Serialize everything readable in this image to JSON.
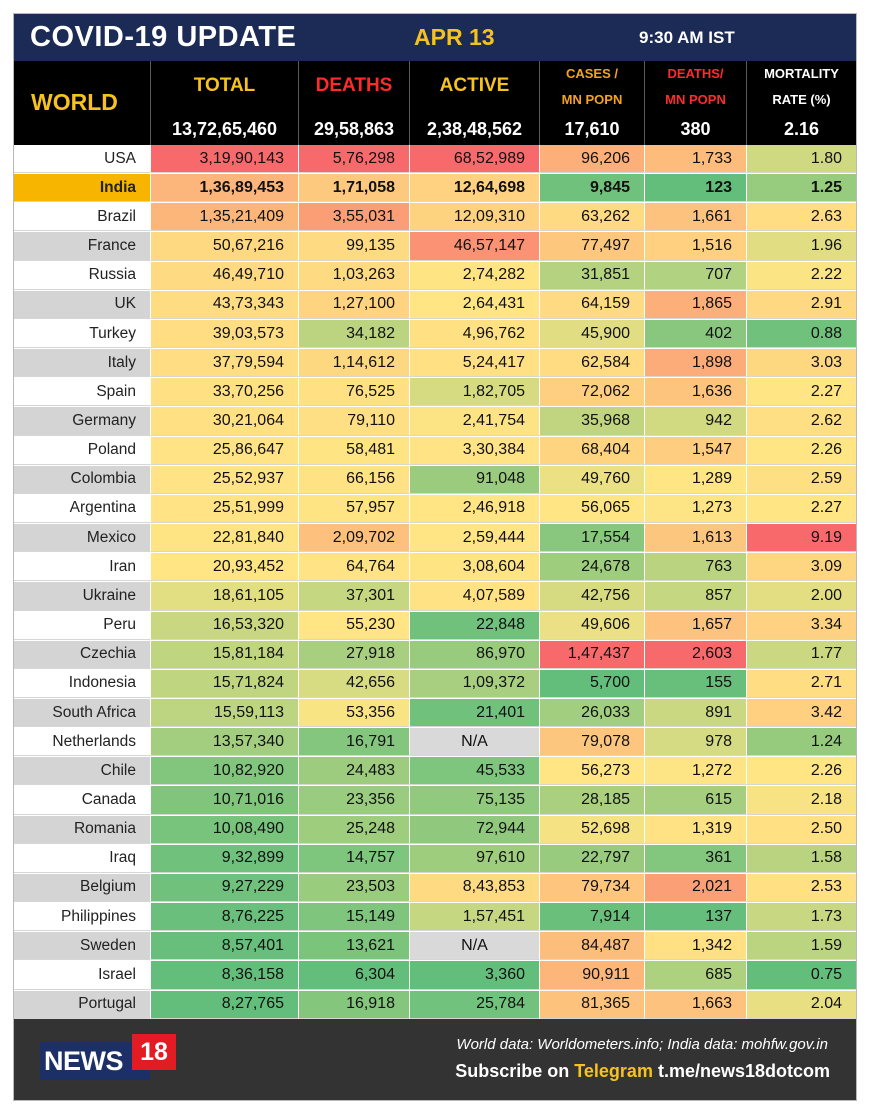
{
  "header": {
    "title": "COVID-19 UPDATE",
    "date": "APR 13",
    "time": "9:30 AM IST"
  },
  "columns": {
    "region": "WORLD",
    "total": "TOTAL",
    "deaths": "DEATHS",
    "active": "ACTIVE",
    "cases_per_mn_1": "CASES /",
    "cases_per_mn_2": "MN POPN",
    "deaths_per_mn_1": "DEATHS/",
    "deaths_per_mn_2": "MN POPN",
    "mortality_1": "MORTALITY",
    "mortality_2": "RATE (%)"
  },
  "world_totals": {
    "total": "13,72,65,460",
    "deaths": "29,58,863",
    "active": "2,38,48,562",
    "cases_per_mn": "17,610",
    "deaths_per_mn": "380",
    "mortality": "2.16"
  },
  "colors": {
    "header_navy": "#1b2b55",
    "accent_yellow": "#f7c21e",
    "deaths_red": "#ff2b2b",
    "cases_orange": "#f7a21e",
    "india_highlight": "#f7b500"
  },
  "rows": [
    {
      "country": "USA",
      "total": "3,19,90,143",
      "deaths": "5,76,298",
      "active": "68,52,989",
      "cases_per_mn": "96,206",
      "deaths_per_mn": "1,733",
      "mortality": "1.80"
    },
    {
      "country": "India",
      "total": "1,36,89,453",
      "deaths": "1,71,058",
      "active": "12,64,698",
      "cases_per_mn": "9,845",
      "deaths_per_mn": "123",
      "mortality": "1.25"
    },
    {
      "country": "Brazil",
      "total": "1,35,21,409",
      "deaths": "3,55,031",
      "active": "12,09,310",
      "cases_per_mn": "63,262",
      "deaths_per_mn": "1,661",
      "mortality": "2.63"
    },
    {
      "country": "France",
      "total": "50,67,216",
      "deaths": "99,135",
      "active": "46,57,147",
      "cases_per_mn": "77,497",
      "deaths_per_mn": "1,516",
      "mortality": "1.96"
    },
    {
      "country": "Russia",
      "total": "46,49,710",
      "deaths": "1,03,263",
      "active": "2,74,282",
      "cases_per_mn": "31,851",
      "deaths_per_mn": "707",
      "mortality": "2.22"
    },
    {
      "country": "UK",
      "total": "43,73,343",
      "deaths": "1,27,100",
      "active": "2,64,431",
      "cases_per_mn": "64,159",
      "deaths_per_mn": "1,865",
      "mortality": "2.91"
    },
    {
      "country": "Turkey",
      "total": "39,03,573",
      "deaths": "34,182",
      "active": "4,96,762",
      "cases_per_mn": "45,900",
      "deaths_per_mn": "402",
      "mortality": "0.88"
    },
    {
      "country": "Italy",
      "total": "37,79,594",
      "deaths": "1,14,612",
      "active": "5,24,417",
      "cases_per_mn": "62,584",
      "deaths_per_mn": "1,898",
      "mortality": "3.03"
    },
    {
      "country": "Spain",
      "total": "33,70,256",
      "deaths": "76,525",
      "active": "1,82,705",
      "cases_per_mn": "72,062",
      "deaths_per_mn": "1,636",
      "mortality": "2.27"
    },
    {
      "country": "Germany",
      "total": "30,21,064",
      "deaths": "79,110",
      "active": "2,41,754",
      "cases_per_mn": "35,968",
      "deaths_per_mn": "942",
      "mortality": "2.62"
    },
    {
      "country": "Poland",
      "total": "25,86,647",
      "deaths": "58,481",
      "active": "3,30,384",
      "cases_per_mn": "68,404",
      "deaths_per_mn": "1,547",
      "mortality": "2.26"
    },
    {
      "country": "Colombia",
      "total": "25,52,937",
      "deaths": "66,156",
      "active": "91,048",
      "cases_per_mn": "49,760",
      "deaths_per_mn": "1,289",
      "mortality": "2.59"
    },
    {
      "country": "Argentina",
      "total": "25,51,999",
      "deaths": "57,957",
      "active": "2,46,918",
      "cases_per_mn": "56,065",
      "deaths_per_mn": "1,273",
      "mortality": "2.27"
    },
    {
      "country": "Mexico",
      "total": "22,81,840",
      "deaths": "2,09,702",
      "active": "2,59,444",
      "cases_per_mn": "17,554",
      "deaths_per_mn": "1,613",
      "mortality": "9.19"
    },
    {
      "country": "Iran",
      "total": "20,93,452",
      "deaths": "64,764",
      "active": "3,08,604",
      "cases_per_mn": "24,678",
      "deaths_per_mn": "763",
      "mortality": "3.09"
    },
    {
      "country": "Ukraine",
      "total": "18,61,105",
      "deaths": "37,301",
      "active": "4,07,589",
      "cases_per_mn": "42,756",
      "deaths_per_mn": "857",
      "mortality": "2.00"
    },
    {
      "country": "Peru",
      "total": "16,53,320",
      "deaths": "55,230",
      "active": "22,848",
      "cases_per_mn": "49,606",
      "deaths_per_mn": "1,657",
      "mortality": "3.34"
    },
    {
      "country": "Czechia",
      "total": "15,81,184",
      "deaths": "27,918",
      "active": "86,970",
      "cases_per_mn": "1,47,437",
      "deaths_per_mn": "2,603",
      "mortality": "1.77"
    },
    {
      "country": "Indonesia",
      "total": "15,71,824",
      "deaths": "42,656",
      "active": "1,09,372",
      "cases_per_mn": "5,700",
      "deaths_per_mn": "155",
      "mortality": "2.71"
    },
    {
      "country": "South Africa",
      "total": "15,59,113",
      "deaths": "53,356",
      "active": "21,401",
      "cases_per_mn": "26,033",
      "deaths_per_mn": "891",
      "mortality": "3.42"
    },
    {
      "country": "Netherlands",
      "total": "13,57,340",
      "deaths": "16,791",
      "active": "N/A",
      "cases_per_mn": "79,078",
      "deaths_per_mn": "978",
      "mortality": "1.24"
    },
    {
      "country": "Chile",
      "total": "10,82,920",
      "deaths": "24,483",
      "active": "45,533",
      "cases_per_mn": "56,273",
      "deaths_per_mn": "1,272",
      "mortality": "2.26"
    },
    {
      "country": "Canada",
      "total": "10,71,016",
      "deaths": "23,356",
      "active": "75,135",
      "cases_per_mn": "28,185",
      "deaths_per_mn": "615",
      "mortality": "2.18"
    },
    {
      "country": "Romania",
      "total": "10,08,490",
      "deaths": "25,248",
      "active": "72,944",
      "cases_per_mn": "52,698",
      "deaths_per_mn": "1,319",
      "mortality": "2.50"
    },
    {
      "country": "Iraq",
      "total": "9,32,899",
      "deaths": "14,757",
      "active": "97,610",
      "cases_per_mn": "22,797",
      "deaths_per_mn": "361",
      "mortality": "1.58"
    },
    {
      "country": "Belgium",
      "total": "9,27,229",
      "deaths": "23,503",
      "active": "8,43,853",
      "cases_per_mn": "79,734",
      "deaths_per_mn": "2,021",
      "mortality": "2.53"
    },
    {
      "country": "Philippines",
      "total": "8,76,225",
      "deaths": "15,149",
      "active": "1,57,451",
      "cases_per_mn": "7,914",
      "deaths_per_mn": "137",
      "mortality": "1.73"
    },
    {
      "country": "Sweden",
      "total": "8,57,401",
      "deaths": "13,621",
      "active": "N/A",
      "cases_per_mn": "84,487",
      "deaths_per_mn": "1,342",
      "mortality": "1.59"
    },
    {
      "country": "Israel",
      "total": "8,36,158",
      "deaths": "6,304",
      "active": "3,360",
      "cases_per_mn": "90,911",
      "deaths_per_mn": "685",
      "mortality": "0.75"
    },
    {
      "country": "Portugal",
      "total": "8,27,765",
      "deaths": "16,918",
      "active": "25,784",
      "cases_per_mn": "81,365",
      "deaths_per_mn": "1,663",
      "mortality": "2.04"
    }
  ],
  "footer": {
    "logo_word": "NEWS",
    "logo_number": "18",
    "source": "World data: Worldometers.info; India data: mohfw.gov.in",
    "subscribe_prefix": "Subscribe on ",
    "subscribe_platform": "Telegram",
    "subscribe_link": " t.me/news18dotcom"
  }
}
